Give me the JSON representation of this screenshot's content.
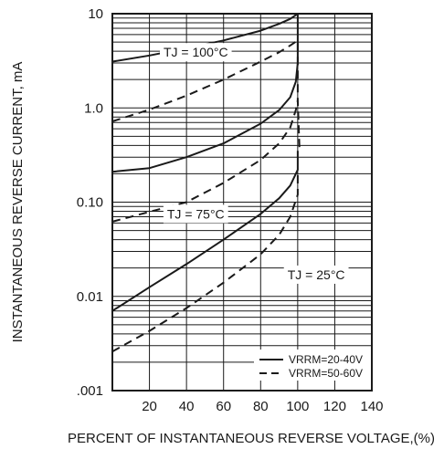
{
  "chart_data": {
    "type": "line",
    "scale": {
      "x": "linear",
      "y": "log"
    },
    "xlabel": "PERCENT OF INSTANTANEOUS REVERSE VOLTAGE,(%)",
    "ylabel": "INSTANTANEOUS REVERSE CURRENT, mA",
    "xlim": [
      0,
      140
    ],
    "ylim": [
      0.001,
      10
    ],
    "x_ticks": [
      "20",
      "40",
      "60",
      "80",
      "100",
      "120",
      "140"
    ],
    "y_ticks": [
      ".001",
      "0.01",
      "0.10",
      "1.0",
      "10"
    ],
    "grid": true,
    "legend_position": "bottom-right",
    "legend": [
      {
        "label": "VRRM=20-40V",
        "style": "solid"
      },
      {
        "label": "VRRM=50-60V",
        "style": "dashed"
      }
    ],
    "annotations": [
      {
        "text": "TJ = 100°C",
        "x": 45,
        "y": 3.9
      },
      {
        "text": "TJ = 75°C",
        "x": 45,
        "y": 0.075
      },
      {
        "text": "TJ = 25°C",
        "x": 110,
        "y": 0.017
      }
    ],
    "series": [
      {
        "group": "TJ = 100°C",
        "style": "solid",
        "x": [
          0,
          20,
          40,
          60,
          80,
          90,
          96,
          100,
          100
        ],
        "y": [
          3.1,
          3.6,
          4.3,
          5.2,
          6.6,
          7.8,
          8.8,
          10,
          10
        ]
      },
      {
        "group": "TJ = 100°C",
        "style": "dashed",
        "x": [
          0,
          20,
          40,
          60,
          80,
          90,
          96,
          100,
          100,
          101
        ],
        "y": [
          0.72,
          0.96,
          1.35,
          2.0,
          3.1,
          3.9,
          4.6,
          5.2,
          1.2,
          0.35
        ]
      },
      {
        "group": "TJ = 75°C",
        "style": "solid",
        "x": [
          0,
          20,
          40,
          60,
          80,
          90,
          96,
          99,
          100,
          100
        ],
        "y": [
          0.21,
          0.23,
          0.3,
          0.42,
          0.68,
          0.95,
          1.3,
          1.9,
          3.0,
          10
        ]
      },
      {
        "group": "TJ = 75°C",
        "style": "dashed",
        "x": [
          0,
          20,
          40,
          60,
          80,
          90,
          96,
          99,
          100
        ],
        "y": [
          0.062,
          0.079,
          0.1,
          0.16,
          0.28,
          0.42,
          0.62,
          0.95,
          1.2
        ]
      },
      {
        "group": "TJ = 25°C",
        "style": "solid",
        "x": [
          0,
          20,
          40,
          60,
          80,
          90,
          96,
          100,
          100
        ],
        "y": [
          0.007,
          0.0125,
          0.022,
          0.04,
          0.075,
          0.11,
          0.15,
          0.22,
          0.35
        ]
      },
      {
        "group": "TJ = 25°C",
        "style": "dashed",
        "x": [
          0,
          20,
          40,
          60,
          80,
          90,
          96,
          100,
          100
        ],
        "y": [
          0.0026,
          0.0043,
          0.0075,
          0.014,
          0.028,
          0.045,
          0.07,
          0.12,
          0.22
        ]
      }
    ]
  }
}
